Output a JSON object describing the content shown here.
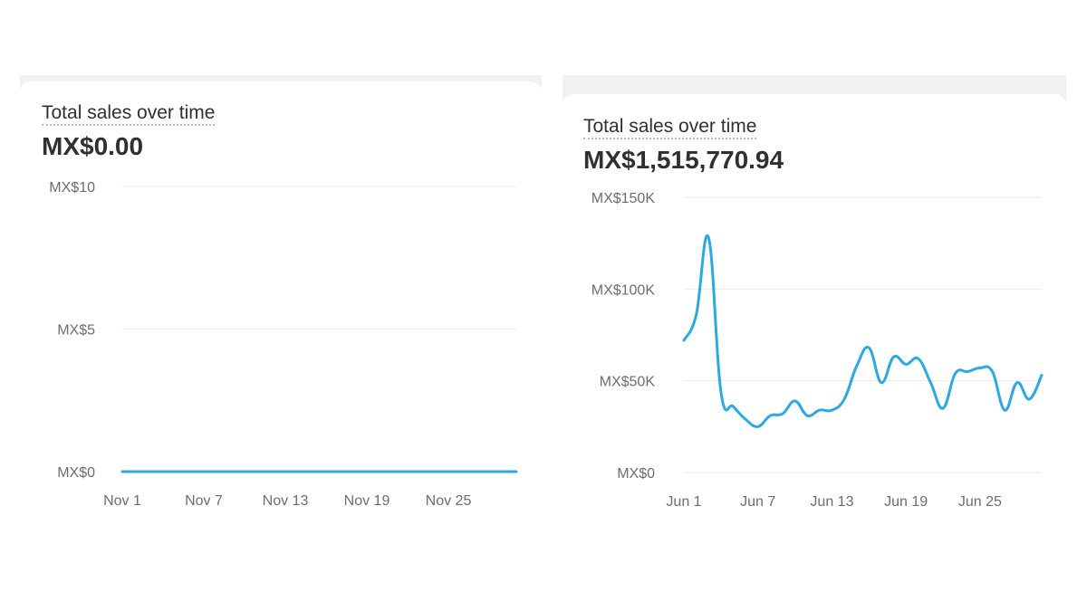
{
  "chart_data": [
    {
      "type": "line",
      "title": "Total sales over time",
      "total": "MX$0.00",
      "x_ticks": [
        "Nov 1",
        "Nov 7",
        "Nov 13",
        "Nov 19",
        "Nov 25"
      ],
      "y_ticks": [
        "MX$0",
        "MX$5",
        "MX$10"
      ],
      "y_tick_values": [
        0,
        5,
        10
      ],
      "ylim": [
        0,
        10
      ],
      "x": [
        "Nov 1",
        "Nov 2",
        "Nov 3",
        "Nov 4",
        "Nov 5",
        "Nov 6",
        "Nov 7",
        "Nov 8",
        "Nov 9",
        "Nov 10",
        "Nov 11",
        "Nov 12",
        "Nov 13",
        "Nov 14",
        "Nov 15",
        "Nov 16",
        "Nov 17",
        "Nov 18",
        "Nov 19",
        "Nov 20",
        "Nov 21",
        "Nov 22",
        "Nov 23",
        "Nov 24",
        "Nov 25",
        "Nov 26",
        "Nov 27",
        "Nov 28",
        "Nov 29",
        "Nov 30"
      ],
      "values": [
        0,
        0,
        0,
        0,
        0,
        0,
        0,
        0,
        0,
        0,
        0,
        0,
        0,
        0,
        0,
        0,
        0,
        0,
        0,
        0,
        0,
        0,
        0,
        0,
        0,
        0,
        0,
        0,
        0,
        0
      ],
      "grid": true,
      "color": "#2ea8e0"
    },
    {
      "type": "line",
      "title": "Total sales over time",
      "total": "MX$1,515,770.94",
      "x_ticks": [
        "Jun 1",
        "Jun 7",
        "Jun 13",
        "Jun 19",
        "Jun 25"
      ],
      "y_ticks": [
        "MX$0",
        "MX$50K",
        "MX$100K",
        "MX$150K"
      ],
      "y_tick_values": [
        0,
        50000,
        100000,
        150000
      ],
      "ylim": [
        0,
        150000
      ],
      "x": [
        "Jun 1",
        "Jun 2",
        "Jun 3",
        "Jun 4",
        "Jun 5",
        "Jun 6",
        "Jun 7",
        "Jun 8",
        "Jun 9",
        "Jun 10",
        "Jun 11",
        "Jun 12",
        "Jun 13",
        "Jun 14",
        "Jun 15",
        "Jun 16",
        "Jun 17",
        "Jun 18",
        "Jun 19",
        "Jun 20",
        "Jun 21",
        "Jun 22",
        "Jun 23",
        "Jun 24",
        "Jun 25",
        "Jun 26",
        "Jun 27",
        "Jun 28",
        "Jun 29",
        "Jun 30"
      ],
      "values": [
        72000,
        86000,
        128000,
        44000,
        36000,
        29000,
        25000,
        31000,
        32000,
        39000,
        31000,
        34000,
        34000,
        40000,
        58000,
        68000,
        49000,
        63000,
        59000,
        62000,
        49000,
        35000,
        54000,
        55000,
        57000,
        55000,
        34000,
        49000,
        40000,
        53000
      ],
      "grid": true,
      "color": "#2ea8e0"
    }
  ]
}
